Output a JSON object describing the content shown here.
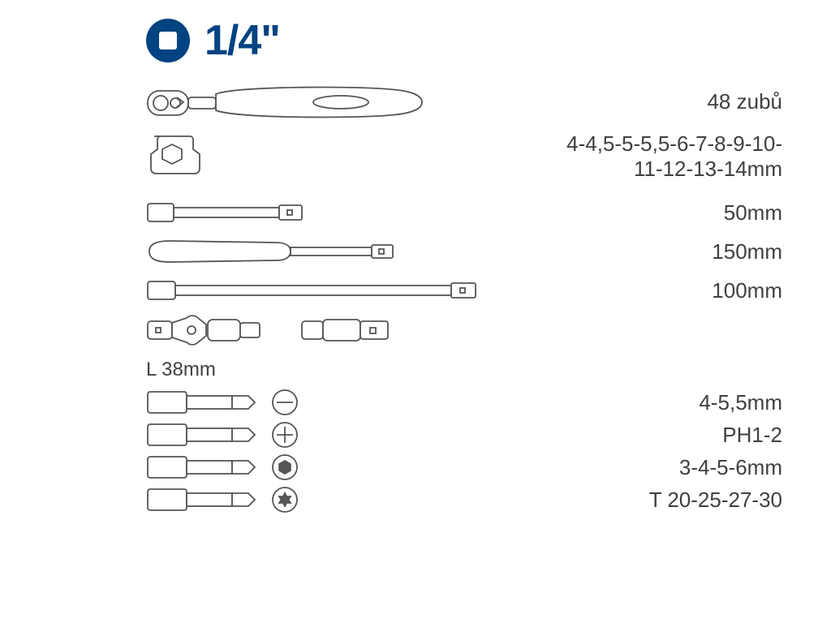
{
  "header": {
    "drive_size": "1/4\"",
    "badge_bg": "#024382",
    "badge_fg": "#ffffff"
  },
  "items": [
    {
      "id": "ratchet",
      "label": "48 zubů"
    },
    {
      "id": "sockets",
      "label": "4-4,5-5-5,5-6-7-8-9-10-\n11-12-13-14mm"
    },
    {
      "id": "ext50",
      "label": "50mm"
    },
    {
      "id": "spinner",
      "label": "150mm"
    },
    {
      "id": "ext100",
      "label": "100mm"
    },
    {
      "id": "ujoint",
      "label": ""
    }
  ],
  "bits_header": "L 38mm",
  "bits": [
    {
      "id": "flat",
      "tip": "slot",
      "label": "4-5,5mm"
    },
    {
      "id": "ph",
      "tip": "phillips",
      "label": "PH1-2"
    },
    {
      "id": "hex",
      "tip": "hex",
      "label": "3-4-5-6mm"
    },
    {
      "id": "torx",
      "tip": "torx",
      "label": "T 20-25-27-30"
    }
  ],
  "style": {
    "stroke_color": "#555555",
    "text_color": "#404040",
    "label_fontsize": 26,
    "header_fontsize": 52,
    "background_color": "#ffffff"
  }
}
